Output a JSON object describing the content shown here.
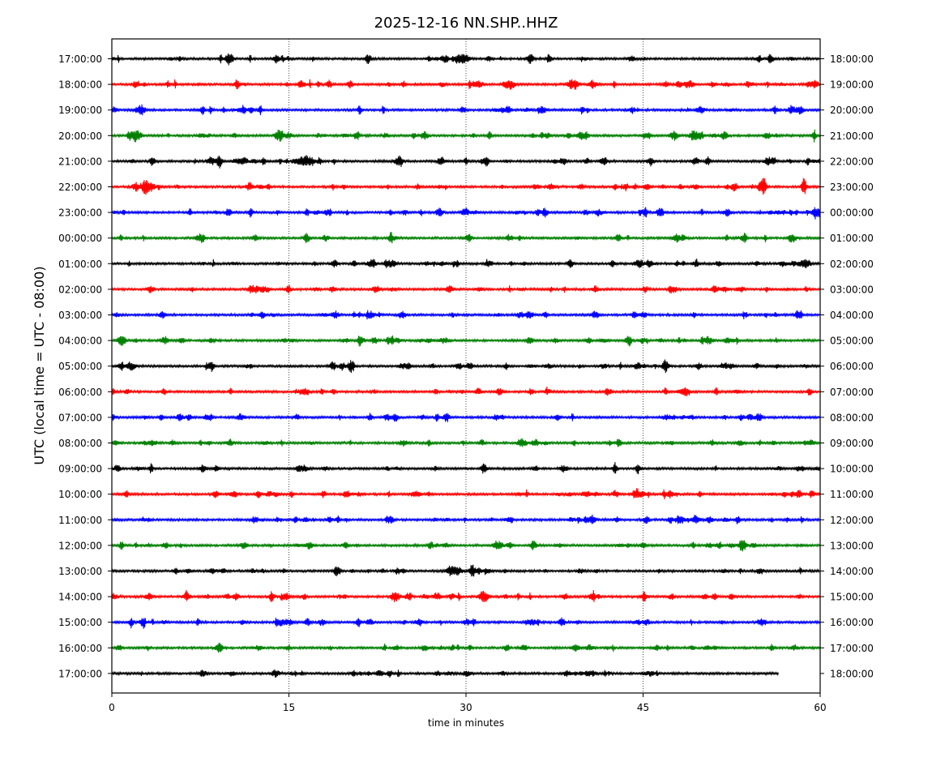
{
  "chart_data": {
    "type": "line",
    "title": "2025-12-16 NN.SHP..HHZ",
    "xlabel": "time in minutes",
    "ylabel": "UTC (local time = UTC - 08:00)",
    "xlim": [
      0,
      60
    ],
    "x_ticks": [
      0,
      15,
      30,
      45,
      60
    ],
    "grid": "vertical dotted at 15, 30, 45",
    "left_tick_labels": [
      "17:00:00",
      "18:00:00",
      "19:00:00",
      "20:00:00",
      "21:00:00",
      "22:00:00",
      "23:00:00",
      "00:00:00",
      "01:00:00",
      "02:00:00",
      "03:00:00",
      "04:00:00",
      "05:00:00",
      "06:00:00",
      "07:00:00",
      "08:00:00",
      "09:00:00",
      "10:00:00",
      "11:00:00",
      "12:00:00",
      "13:00:00",
      "14:00:00",
      "15:00:00",
      "16:00:00",
      "17:00:00"
    ],
    "right_tick_labels": [
      "18:00:00",
      "19:00:00",
      "20:00:00",
      "21:00:00",
      "22:00:00",
      "23:00:00",
      "00:00:00",
      "01:00:00",
      "02:00:00",
      "03:00:00",
      "04:00:00",
      "05:00:00",
      "06:00:00",
      "07:00:00",
      "08:00:00",
      "09:00:00",
      "10:00:00",
      "11:00:00",
      "12:00:00",
      "13:00:00",
      "14:00:00",
      "15:00:00",
      "16:00:00",
      "17:00:00",
      "18:00:00"
    ],
    "trace_colors": [
      "#000000",
      "#ff0000",
      "#0000ff",
      "#008000"
    ],
    "last_trace_end_minute": 56.5
  }
}
